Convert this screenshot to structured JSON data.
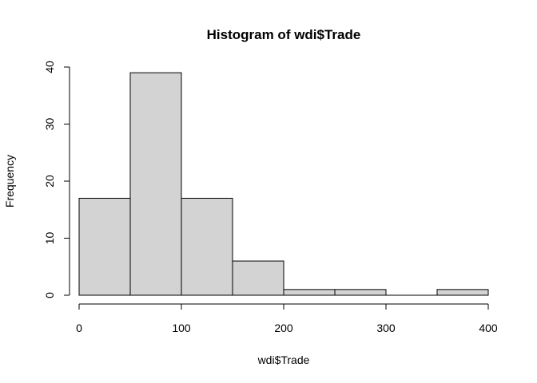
{
  "chart_data": {
    "type": "bar",
    "title": "Histogram of wdi$Trade",
    "xlabel": "wdi$Trade",
    "ylabel": "Frequency",
    "bins": [
      {
        "start": 0,
        "end": 50,
        "count": 17
      },
      {
        "start": 50,
        "end": 100,
        "count": 39
      },
      {
        "start": 100,
        "end": 150,
        "count": 17
      },
      {
        "start": 150,
        "end": 200,
        "count": 6
      },
      {
        "start": 200,
        "end": 250,
        "count": 1
      },
      {
        "start": 250,
        "end": 300,
        "count": 1
      },
      {
        "start": 300,
        "end": 350,
        "count": 0
      },
      {
        "start": 350,
        "end": 400,
        "count": 1
      }
    ],
    "xlim": [
      0,
      400
    ],
    "ylim": [
      0,
      40
    ],
    "x_ticks": [
      "0",
      "100",
      "200",
      "300",
      "400"
    ],
    "y_ticks": [
      "0",
      "10",
      "20",
      "30",
      "40"
    ],
    "grid": false,
    "colors": {
      "bar_fill": "#d3d3d3",
      "bar_stroke": "#000000",
      "axis": "#000000",
      "background": "#ffffff"
    }
  }
}
